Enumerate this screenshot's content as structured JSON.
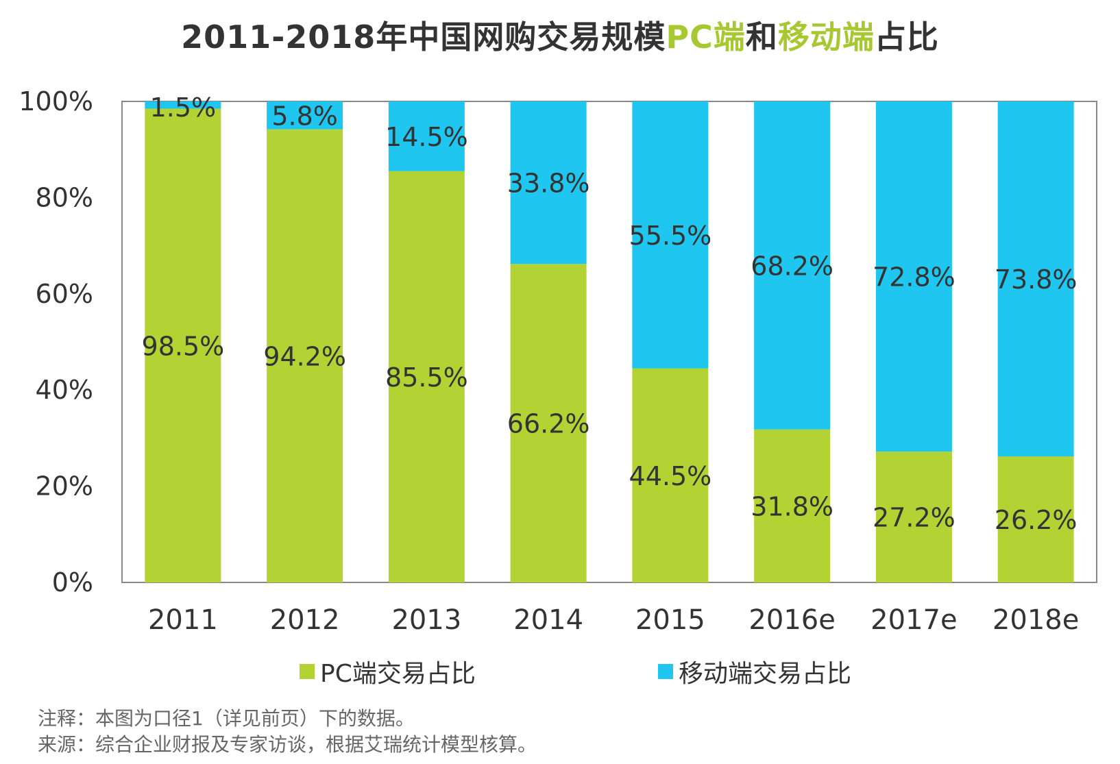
{
  "title": {
    "part1": "2011-2018年中国网购交易规模",
    "part2": "PC端",
    "part3": "和",
    "part4": "移动端",
    "part5": "占比"
  },
  "colors": {
    "pc": "#b3d234",
    "mobile": "#1fc6ef",
    "axis": "#888888",
    "text": "#333333"
  },
  "chart_data": {
    "type": "bar",
    "stacked": true,
    "title": "2011-2018年中国网购交易规模PC端和移动端占比",
    "categories": [
      "2011",
      "2012",
      "2013",
      "2014",
      "2015",
      "2016e",
      "2017e",
      "2018e"
    ],
    "series": [
      {
        "name": "PC端交易占比",
        "values": [
          98.5,
          94.2,
          85.5,
          66.2,
          44.5,
          31.8,
          27.2,
          26.2
        ],
        "labels": [
          "98.5%",
          "94.2%",
          "85.5%",
          "66.2%",
          "44.5%",
          "31.8%",
          "27.2%",
          "26.2%"
        ]
      },
      {
        "name": "移动端交易占比",
        "values": [
          1.5,
          5.8,
          14.5,
          33.8,
          55.5,
          68.2,
          72.8,
          73.8
        ],
        "labels": [
          "1.5%",
          "5.8%",
          "14.5%",
          "33.8%",
          "55.5%",
          "68.2%",
          "72.8%",
          "73.8%"
        ]
      }
    ],
    "yticks": [
      "0%",
      "20%",
      "40%",
      "60%",
      "80%",
      "100%"
    ],
    "ylim": [
      0,
      100
    ],
    "xlabel": "",
    "ylabel": "",
    "legend": "bottom"
  },
  "legend": {
    "pc_label": "PC端交易占比",
    "mobile_label": "移动端交易占比"
  },
  "notes": {
    "note": "注释：本图为口径1（详见前页）下的数据。",
    "source": "来源：综合企业财报及专家访谈，根据艾瑞统计模型核算。"
  }
}
